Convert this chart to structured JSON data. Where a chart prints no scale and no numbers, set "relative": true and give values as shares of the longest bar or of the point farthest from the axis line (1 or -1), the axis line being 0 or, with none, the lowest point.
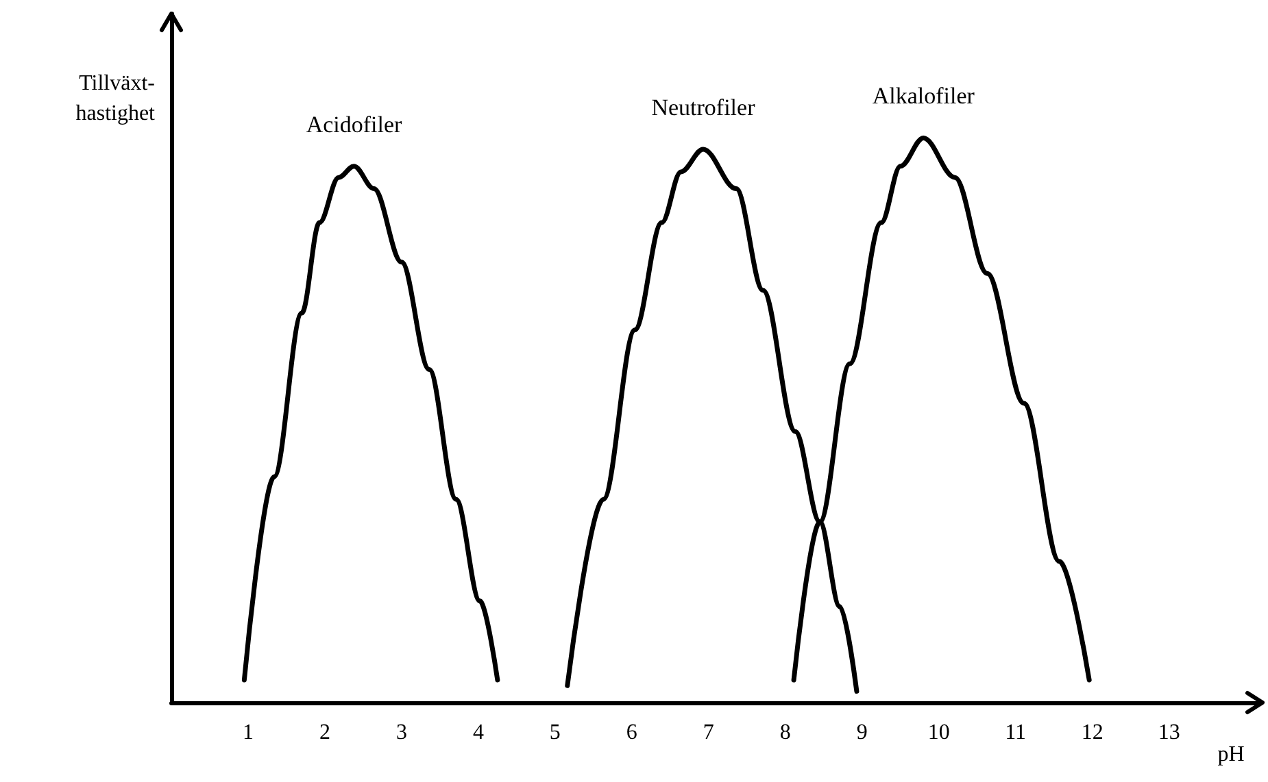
{
  "chart_data": {
    "type": "line",
    "relative": true,
    "xlabel": "pH",
    "ylabel": "Tillväxt-\nhastighet",
    "xlim": [
      0,
      14.2
    ],
    "xticks": [
      1,
      2,
      3,
      4,
      5,
      6,
      7,
      8,
      9,
      10,
      11,
      12,
      13
    ],
    "grid": false,
    "legend": false,
    "marker": "none",
    "line_style": "solid",
    "series": [
      {
        "name": "Acidofiler",
        "color": "#000000",
        "x": [
          0.95,
          1.34,
          1.7,
          1.93,
          2.18,
          2.38,
          2.64,
          3.0,
          3.36,
          3.71,
          4.02,
          4.25
        ],
        "values": [
          0.04,
          0.4,
          0.69,
          0.85,
          0.93,
          0.95,
          0.91,
          0.78,
          0.59,
          0.36,
          0.18,
          0.04
        ]
      },
      {
        "name": "Neutrofiler",
        "color": "#000000",
        "x": [
          5.16,
          5.63,
          6.04,
          6.39,
          6.64,
          6.93,
          7.36,
          7.71,
          8.13,
          8.45,
          8.71,
          8.93
        ],
        "values": [
          0.03,
          0.36,
          0.66,
          0.85,
          0.94,
          0.98,
          0.91,
          0.73,
          0.48,
          0.32,
          0.17,
          0.02
        ]
      },
      {
        "name": "Alkalofiler",
        "color": "#000000",
        "x": [
          8.11,
          8.45,
          8.84,
          9.25,
          9.5,
          9.8,
          10.21,
          10.63,
          11.11,
          11.57,
          11.96
        ],
        "values": [
          0.04,
          0.32,
          0.6,
          0.85,
          0.95,
          1.0,
          0.93,
          0.76,
          0.53,
          0.25,
          0.04
        ]
      }
    ]
  }
}
